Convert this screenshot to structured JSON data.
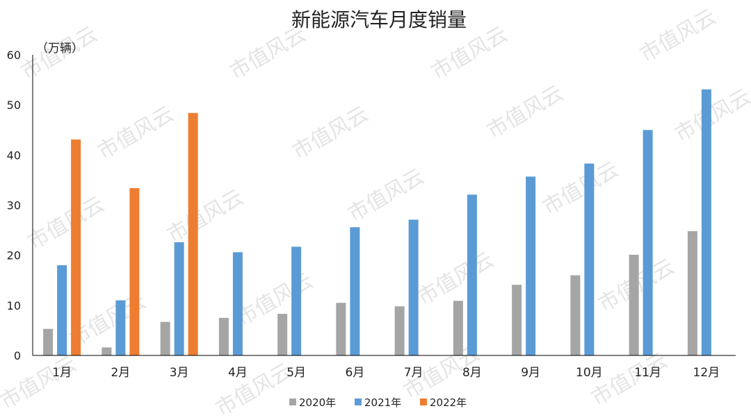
{
  "chart_data": {
    "type": "bar",
    "title": "新能源汽车月度销量",
    "unit_label": "（万辆）",
    "xlabel": "",
    "ylabel": "",
    "ylim": [
      0,
      60
    ],
    "yticks": [
      0,
      10,
      20,
      30,
      40,
      50,
      60
    ],
    "grid": false,
    "legend_position": "bottom",
    "categories": [
      "1月",
      "2月",
      "3月",
      "4月",
      "5月",
      "6月",
      "7月",
      "8月",
      "9月",
      "10月",
      "11月",
      "12月"
    ],
    "series": [
      {
        "name": "2020年",
        "color": "#A5A5A5",
        "values": [
          5.3,
          1.6,
          6.7,
          7.5,
          8.3,
          10.5,
          9.8,
          10.9,
          14.1,
          16.0,
          20.1,
          24.8
        ]
      },
      {
        "name": "2021年",
        "color": "#5B9BD5",
        "values": [
          18.0,
          11.0,
          22.6,
          20.6,
          21.7,
          25.6,
          27.1,
          32.1,
          35.7,
          38.3,
          45.0,
          53.1
        ]
      },
      {
        "name": "2022年",
        "color": "#ED7D31",
        "values": [
          43.1,
          33.4,
          48.4,
          null,
          null,
          null,
          null,
          null,
          null,
          null,
          null,
          null
        ]
      }
    ]
  },
  "watermark": {
    "text": "市值风云",
    "color": "#e4e4e4"
  },
  "colors": {
    "axis": "#000000",
    "text": "#222222"
  }
}
